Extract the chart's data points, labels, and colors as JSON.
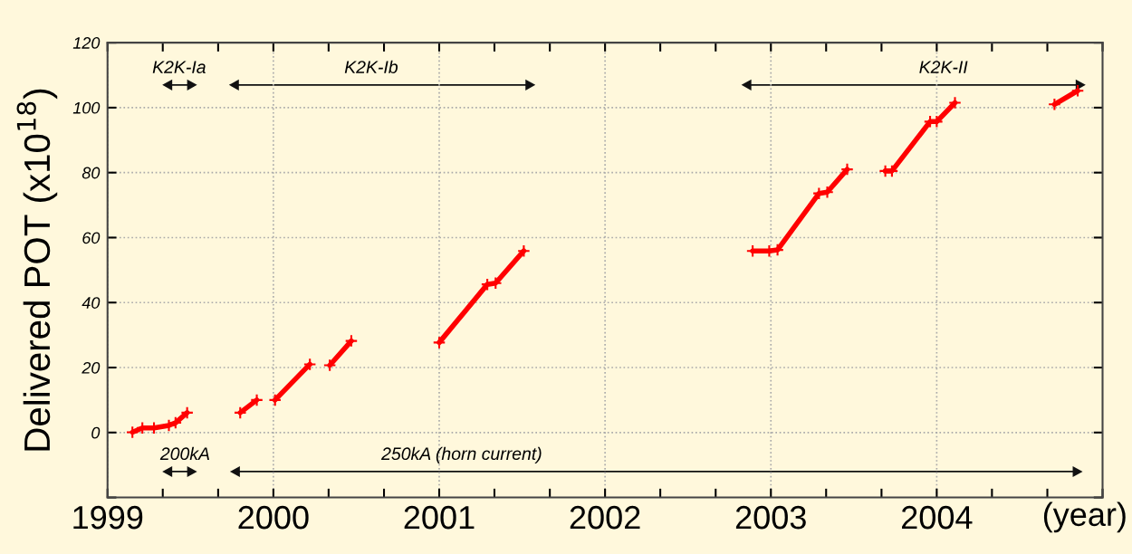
{
  "chart_data": {
    "type": "line",
    "ylabel": "Delivered POT (x10$^{18}$)",
    "xlabel": "(year)",
    "x": [
      1999.15,
      1999.21,
      1999.28,
      1999.37,
      1999.41,
      1999.48,
      1999.64,
      1999.8,
      1999.9,
      1999.95,
      2000.01,
      2000.22,
      2000.28,
      2000.34,
      2000.47,
      2000.7,
      2001.0,
      2001.29,
      2001.34,
      2001.51,
      2002.2,
      2002.89,
      2002.99,
      2003.04,
      2003.29,
      2003.34,
      2003.46,
      2003.58,
      2003.69,
      2003.73,
      2003.96,
      2004.0,
      2004.11,
      2004.4,
      2004.71,
      2004.85
    ],
    "series": [
      {
        "color": "#ff0000",
        "values": [
          0.1,
          1.4,
          1.4,
          2.2,
          3,
          6.1,
          null,
          6.1,
          10,
          null,
          10,
          21,
          null,
          20.7,
          28.2,
          null,
          27.7,
          45.6,
          46,
          55.9,
          null,
          55.9,
          55.9,
          56.2,
          73.6,
          74,
          81,
          null,
          80.5,
          80.5,
          95.7,
          95.7,
          101.5,
          null,
          101,
          105.2
        ]
      }
    ],
    "marker": "cross",
    "line_style": "solid",
    "xlim": [
      1999,
      2005
    ],
    "xticks": [
      1999,
      {
        "value": 1999.333,
        "label": null
      },
      {
        "value": 1999.667,
        "label": null
      },
      2000,
      {
        "value": 2000.333,
        "label": null
      },
      {
        "value": 2000.667,
        "label": null
      },
      2001,
      {
        "value": 2001.333,
        "label": null
      },
      {
        "value": 2001.667,
        "label": null
      },
      2002,
      {
        "value": 2002.333,
        "label": null
      },
      {
        "value": 2002.667,
        "label": null
      },
      2003,
      {
        "value": 2003.333,
        "label": null
      },
      {
        "value": 2003.667,
        "label": null
      },
      2004,
      {
        "value": 2004.333,
        "label": null
      },
      {
        "value": 2004.667,
        "label": null
      },
      {
        "value": 2005,
        "label": null
      }
    ],
    "ylim": [
      -20,
      120
    ],
    "yticks": [
      {
        "value": -20,
        "label": null
      },
      0,
      20,
      40,
      60,
      80,
      100,
      120
    ],
    "grid": true,
    "annotations": [
      "K2K-Ia",
      "K2K-Ib",
      "K2K-II",
      "200kA",
      "250kA (horn current)"
    ]
  }
}
